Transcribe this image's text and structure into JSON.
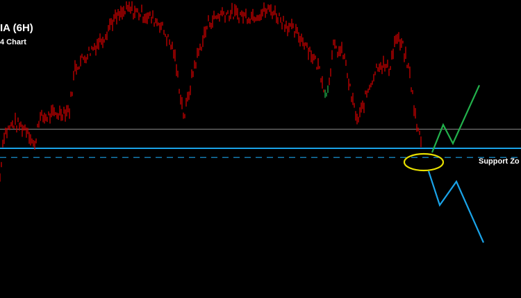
{
  "header": {
    "title": "IA (6H)",
    "subtitle": "4 Chart"
  },
  "chart_data": {
    "type": "bar",
    "style": "price-bars",
    "title": "IA (6H)",
    "subtitle": "4 Chart",
    "price_series": [
      20,
      72,
      85,
      78,
      55,
      90,
      96,
      102,
      152,
      168,
      190,
      207,
      222,
      215,
      206,
      172,
      92,
      155,
      206,
      218,
      214,
      222,
      206,
      198,
      182,
      150,
      118,
      176,
      168,
      120,
      86,
      126,
      158,
      150,
      188,
      176,
      144,
      80,
      68
    ],
    "annotations": {
      "resistance_line": {
        "level": 78,
        "color": "#8c8c8c"
      },
      "support_zone": {
        "label": "Support Zo",
        "upper_level": 55,
        "lower_level": 44,
        "color": "#1aa3e8"
      },
      "highlight_ellipse_color": "#e8e000",
      "bullish_scenario_color": "#22b14c",
      "bearish_scenario_color": "#1aa3e8"
    },
    "colors": {
      "bars": "#cc0000",
      "bars_up": "#22b14c",
      "background": "#000000"
    },
    "grid": false
  }
}
